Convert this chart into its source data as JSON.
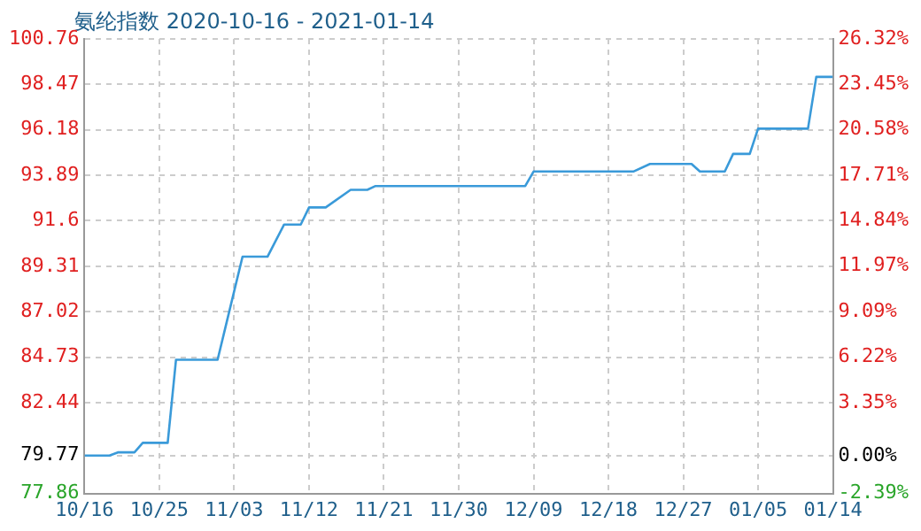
{
  "chart_data": {
    "type": "line",
    "title": "氨纶指数 2020-10-16 - 2021-01-14",
    "x": [
      "2020-10-16",
      "2020-10-19",
      "2020-10-20",
      "2020-10-22",
      "2020-10-23",
      "2020-10-26",
      "2020-10-27",
      "2020-11-01",
      "2020-11-04",
      "2020-11-07",
      "2020-11-09",
      "2020-11-11",
      "2020-11-12",
      "2020-11-14",
      "2020-11-17",
      "2020-11-19",
      "2020-11-20",
      "2020-12-08",
      "2020-12-09",
      "2020-12-21",
      "2020-12-23",
      "2020-12-28",
      "2020-12-29",
      "2021-01-01",
      "2021-01-02",
      "2021-01-04",
      "2021-01-05",
      "2021-01-11",
      "2021-01-12",
      "2021-01-14"
    ],
    "series": [
      {
        "color": "#3a9ad9",
        "values": [
          79.77,
          79.77,
          79.93,
          79.93,
          80.41,
          80.41,
          84.6,
          84.6,
          89.79,
          89.79,
          91.41,
          91.41,
          92.27,
          92.27,
          93.16,
          93.16,
          93.35,
          93.35,
          94.08,
          94.08,
          94.46,
          94.46,
          94.08,
          94.08,
          94.97,
          94.97,
          96.24,
          96.24,
          98.85,
          98.85
        ]
      }
    ],
    "xlim": [
      "2020-10-16",
      "2021-01-14"
    ],
    "xticks": [
      {
        "value": "2020-10-16",
        "label": "10/16"
      },
      {
        "value": "2020-10-25",
        "label": "10/25"
      },
      {
        "value": "2020-11-03",
        "label": "11/03"
      },
      {
        "value": "2020-11-12",
        "label": "11/12"
      },
      {
        "value": "2020-11-21",
        "label": "11/21"
      },
      {
        "value": "2020-11-30",
        "label": "11/30"
      },
      {
        "value": "2020-12-09",
        "label": "12/09"
      },
      {
        "value": "2020-12-18",
        "label": "12/18"
      },
      {
        "value": "2020-12-27",
        "label": "12/27"
      },
      {
        "value": "2021-01-05",
        "label": "01/05"
      },
      {
        "value": "2021-01-14",
        "label": "01/14"
      }
    ],
    "ylim": [
      77.86,
      100.76
    ],
    "yticks": [
      77.86,
      79.77,
      82.44,
      84.73,
      87.02,
      89.31,
      91.6,
      93.89,
      96.18,
      98.47,
      100.76
    ],
    "y2lim": [
      -2.39,
      26.32
    ],
    "y2ticks": [
      {
        "value": -2.39,
        "label": "-2.39%"
      },
      {
        "value": 0,
        "label": "0.00%"
      },
      {
        "value": 3.35,
        "label": "3.35%"
      },
      {
        "value": 6.22,
        "label": "6.22%"
      },
      {
        "value": 9.09,
        "label": "9.09%"
      },
      {
        "value": 11.97,
        "label": "11.97%"
      },
      {
        "value": 14.84,
        "label": "14.84%"
      },
      {
        "value": 17.71,
        "label": "17.71%"
      },
      {
        "value": 20.58,
        "label": "20.58%"
      },
      {
        "value": 23.45,
        "label": "23.45%"
      },
      {
        "value": 26.32,
        "label": "26.32%"
      }
    ],
    "grid": true,
    "legend": false,
    "marker": "none",
    "line_style": "solid"
  }
}
